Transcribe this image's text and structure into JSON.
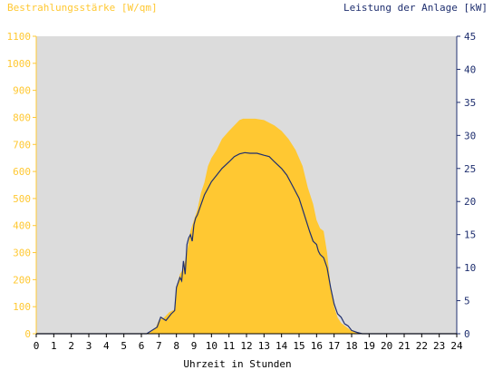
{
  "colors": {
    "plot_bg": "#dcdcdc",
    "irradiance": "#ffc832",
    "power_line": "#1f2f6f",
    "axis_left": "#ffc832",
    "axis_right": "#1f2f6f",
    "axis_bottom": "#000000"
  },
  "chart_data": {
    "type": "area",
    "title_left": "Bestrahlungsstärke [W/qm]",
    "title_right": "Leistung der Anlage [kW]",
    "xlabel": "Uhrzeit in Stunden",
    "xlim": [
      0,
      24
    ],
    "x_ticks": [
      "0",
      "1",
      "2",
      "3",
      "4",
      "5",
      "6",
      "7",
      "8",
      "9",
      "10",
      "11",
      "12",
      "13",
      "14",
      "15",
      "16",
      "17",
      "18",
      "19",
      "20",
      "21",
      "22",
      "23",
      "24"
    ],
    "y_left_lim": [
      0,
      1100
    ],
    "y_left_ticks": [
      "0",
      "100",
      "200",
      "300",
      "400",
      "500",
      "600",
      "700",
      "800",
      "900",
      "1000",
      "1100"
    ],
    "y_right_lim": [
      0,
      45
    ],
    "y_right_ticks": [
      "0",
      "5",
      "10",
      "15",
      "20",
      "25",
      "30",
      "35",
      "40",
      "45"
    ],
    "grid": false,
    "series": [
      {
        "name": "Bestrahlungsstärke [W/qm]",
        "axis": "left",
        "style": "area",
        "x": [
          0,
          6.2,
          6.5,
          6.8,
          7.0,
          7.3,
          7.6,
          7.9,
          8.0,
          8.2,
          8.4,
          8.6,
          8.8,
          9.0,
          9.2,
          9.4,
          9.6,
          9.8,
          10.0,
          10.3,
          10.6,
          11.0,
          11.3,
          11.6,
          11.8,
          12.0,
          12.5,
          13.0,
          13.3,
          13.6,
          14.0,
          14.4,
          14.8,
          15.2,
          15.5,
          15.8,
          16.0,
          16.2,
          16.4,
          16.6,
          16.8,
          17.0,
          17.2,
          17.4,
          17.6,
          17.8,
          18.0,
          18.2,
          18.4,
          18.6,
          24
        ],
        "values": [
          0,
          0,
          5,
          20,
          50,
          60,
          80,
          90,
          170,
          220,
          240,
          300,
          380,
          420,
          460,
          520,
          560,
          620,
          650,
          680,
          720,
          750,
          770,
          790,
          795,
          795,
          795,
          790,
          780,
          770,
          750,
          720,
          680,
          620,
          540,
          480,
          420,
          390,
          380,
          300,
          180,
          100,
          60,
          40,
          30,
          20,
          10,
          5,
          2,
          0,
          0
        ]
      },
      {
        "name": "Leistung der Anlage [kW]",
        "axis": "right",
        "style": "line",
        "x": [
          0,
          6.3,
          6.6,
          6.9,
          7.1,
          7.4,
          7.7,
          7.9,
          8.0,
          8.2,
          8.3,
          8.4,
          8.5,
          8.6,
          8.7,
          8.8,
          8.9,
          9.0,
          9.1,
          9.2,
          9.4,
          9.6,
          9.8,
          10.0,
          10.3,
          10.6,
          11.0,
          11.3,
          11.6,
          11.9,
          12.2,
          12.6,
          13.0,
          13.3,
          13.6,
          14.0,
          14.3,
          14.6,
          15.0,
          15.3,
          15.6,
          15.8,
          16.0,
          16.1,
          16.2,
          16.4,
          16.6,
          16.8,
          17.0,
          17.2,
          17.4,
          17.6,
          17.8,
          18.0,
          18.3,
          18.6,
          24
        ],
        "values": [
          0,
          0,
          0.5,
          1,
          2.5,
          2.0,
          3.0,
          3.5,
          7.0,
          8.5,
          8.0,
          11.0,
          9.0,
          13.5,
          14.5,
          15.0,
          14.0,
          16.5,
          17.5,
          18.0,
          19.5,
          21.0,
          22.0,
          23.0,
          24.0,
          25.0,
          26.0,
          26.8,
          27.2,
          27.4,
          27.3,
          27.3,
          27.0,
          26.8,
          26.0,
          25.0,
          24.0,
          22.5,
          20.5,
          18.0,
          15.5,
          14.0,
          13.5,
          12.5,
          12.0,
          11.5,
          10.0,
          7.0,
          4.5,
          3.0,
          2.5,
          1.5,
          1.2,
          0.5,
          0.2,
          0,
          0
        ]
      }
    ]
  }
}
